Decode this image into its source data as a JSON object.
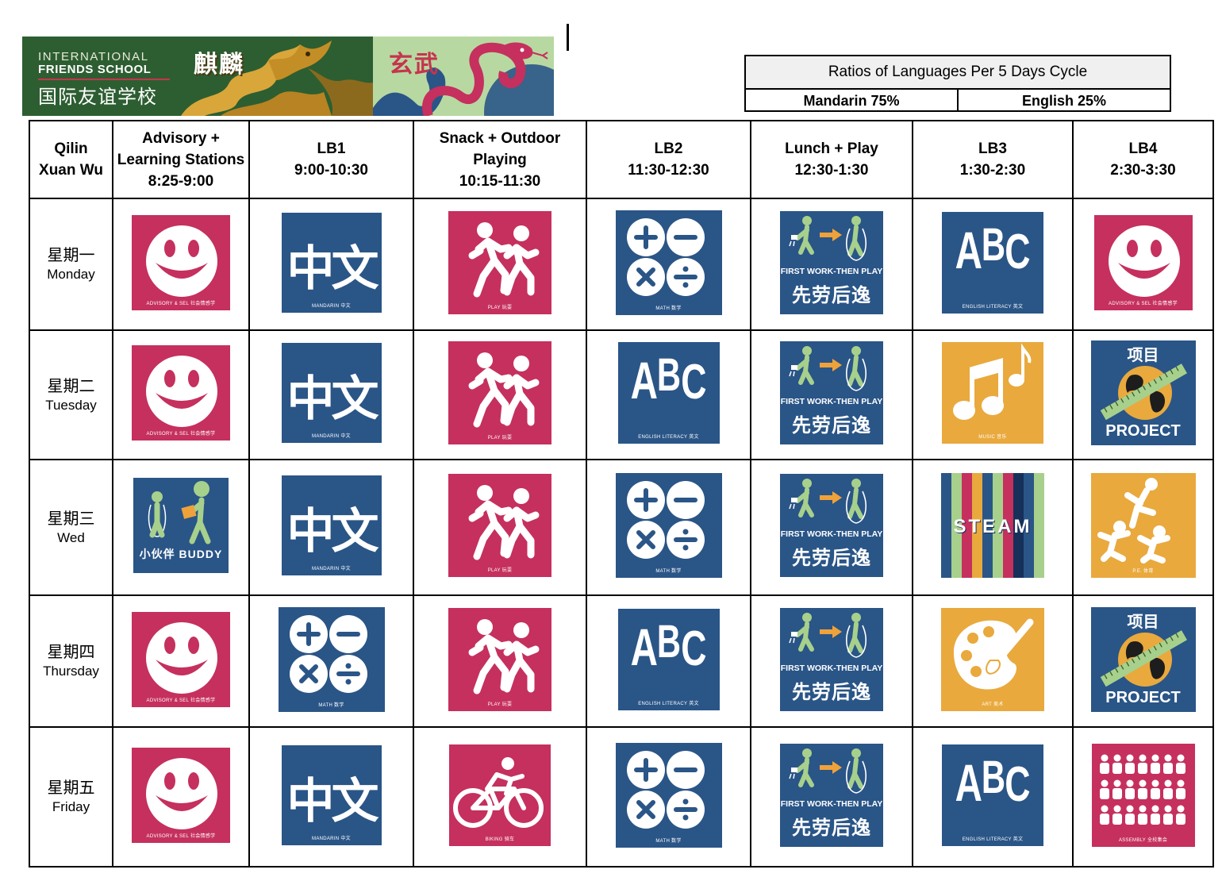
{
  "banner": {
    "line1": "INTERNATIONAL",
    "line2": "FRIENDS SCHOOL",
    "line3": "国际友谊学校",
    "class1_cn": "麒麟",
    "class2_cn": "玄武"
  },
  "ratio": {
    "title": "Ratios of Languages Per 5 Days Cycle",
    "mandarin": "Mandarin 75%",
    "english": "English 25%"
  },
  "header": {
    "corner": [
      "Qilin",
      "Xuan Wu"
    ],
    "cols": [
      [
        "Advisory +",
        "Learning Stations",
        "8:25-9:00"
      ],
      [
        "LB1",
        "9:00-10:30"
      ],
      [
        "Snack + Outdoor",
        "Playing",
        "10:15-11:30"
      ],
      [
        "LB2",
        "11:30-12:30"
      ],
      [
        "Lunch + Play",
        "12:30-1:30"
      ],
      [
        "LB3",
        "1:30-2:30"
      ],
      [
        "LB4",
        "2:30-3:30"
      ]
    ]
  },
  "days": [
    {
      "cn": "星期一",
      "en": "Monday"
    },
    {
      "cn": "星期二",
      "en": "Tuesday"
    },
    {
      "cn": "星期三",
      "en": "Wed"
    },
    {
      "cn": "星期四",
      "en": "Thursday"
    },
    {
      "cn": "星期五",
      "en": "Friday"
    }
  ],
  "tile_labels": {
    "advisory": "ADVISORY & SEL 社会情感学",
    "mandarin": "MANDARIN 中文",
    "mandarin_glyph": "中文",
    "play": "PLAY 玩耍",
    "math": "MATH 数学",
    "english": "ENGLISH LITERACY 英文",
    "fw_en": "FIRST WORK-THEN PLAY",
    "fw_cn": "先劳后逸",
    "music": "MUSIC 音乐",
    "project_cn": "项目",
    "project_en": "PROJECT",
    "buddy": "小伙伴  BUDDY",
    "steam": "STEAM",
    "pe": "P.E. 体育",
    "art": "ART 美术",
    "biking": "BIKING 骑车",
    "assembly": "ASSEMBLY 全校集会"
  },
  "grid": [
    [
      "advisory",
      "mandarin",
      "play",
      "math",
      "firstwork",
      "english",
      "advisory"
    ],
    [
      "advisory",
      "mandarin",
      "play",
      "english",
      "firstwork",
      "music",
      "project"
    ],
    [
      "buddy",
      "mandarin",
      "play",
      "math",
      "firstwork",
      "steam",
      "pe"
    ],
    [
      "advisory",
      "math",
      "play",
      "english",
      "firstwork",
      "art",
      "project"
    ],
    [
      "advisory",
      "mandarin",
      "biking",
      "math",
      "firstwork",
      "english",
      "assembly"
    ]
  ],
  "colors": {
    "pink": "#c5305e",
    "blue": "#2a5587",
    "gold": "#e9a93d",
    "banner_green": "#2d5e31",
    "banner_light": "#b7d9a1",
    "arrow_orange": "#f0a23a",
    "figure_green": "#a7d08c"
  }
}
